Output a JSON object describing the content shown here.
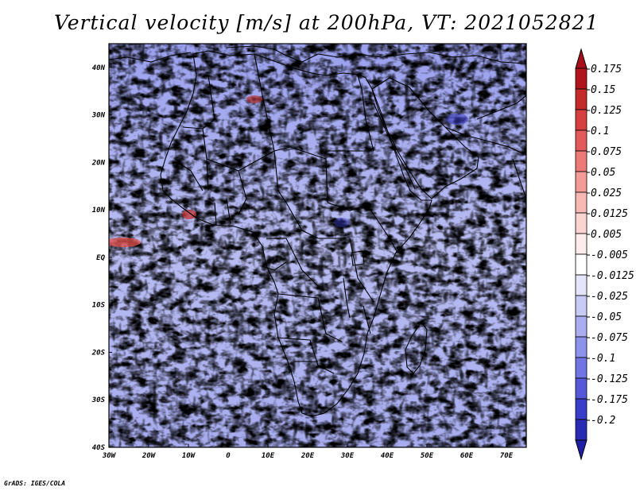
{
  "title": "Vertical velocity [m/s] at 200hPa, VT: 2021052821",
  "credit": "GrADS: IGES/COLA",
  "map": {
    "region": "Africa",
    "lon_range": [
      -30,
      75
    ],
    "lat_range": [
      -40,
      45
    ],
    "lon_ticks": [
      {
        "value": -30,
        "label": "30W"
      },
      {
        "value": -20,
        "label": "20W"
      },
      {
        "value": -10,
        "label": "10W"
      },
      {
        "value": 0,
        "label": "0"
      },
      {
        "value": 10,
        "label": "10E"
      },
      {
        "value": 20,
        "label": "20E"
      },
      {
        "value": 30,
        "label": "30E"
      },
      {
        "value": 40,
        "label": "40E"
      },
      {
        "value": 50,
        "label": "50E"
      },
      {
        "value": 60,
        "label": "60E"
      },
      {
        "value": 70,
        "label": "70E"
      }
    ],
    "lat_ticks": [
      {
        "value": 40,
        "label": "40N"
      },
      {
        "value": 30,
        "label": "30N"
      },
      {
        "value": 20,
        "label": "20N"
      },
      {
        "value": 10,
        "label": "10N"
      },
      {
        "value": 0,
        "label": "EQ"
      },
      {
        "value": -10,
        "label": "10S"
      },
      {
        "value": -20,
        "label": "20S"
      },
      {
        "value": -30,
        "label": "30S"
      },
      {
        "value": -40,
        "label": "40S"
      }
    ]
  },
  "colorbar": {
    "levels": [
      {
        "label": "0.175",
        "color": "#b0151c"
      },
      {
        "label": "0.15",
        "color": "#c42a2a"
      },
      {
        "label": "0.125",
        "color": "#d64040"
      },
      {
        "label": "0.1",
        "color": "#e35a5a"
      },
      {
        "label": "0.075",
        "color": "#ec7b78"
      },
      {
        "label": "0.05",
        "color": "#f39b97"
      },
      {
        "label": "0.025",
        "color": "#f8b9b5"
      },
      {
        "label": "0.0125",
        "color": "#fbd4d1"
      },
      {
        "label": "0.005",
        "color": "#fdeceb"
      },
      {
        "label": "-0.005",
        "color": "#ffffff"
      },
      {
        "label": "-0.0125",
        "color": "#e4e5fa"
      },
      {
        "label": "-0.025",
        "color": "#c8cbf5"
      },
      {
        "label": "-0.05",
        "color": "#aaaef0"
      },
      {
        "label": "-0.075",
        "color": "#8d92ea"
      },
      {
        "label": "-0.1",
        "color": "#7075e3"
      },
      {
        "label": "-0.125",
        "color": "#5559d8"
      },
      {
        "label": "-0.175",
        "color": "#3a3dc9"
      },
      {
        "label": "-0.2",
        "color": "#2a2bb5"
      }
    ],
    "top_color": "#a5101a",
    "bottom_color": "#1e1fa5"
  }
}
